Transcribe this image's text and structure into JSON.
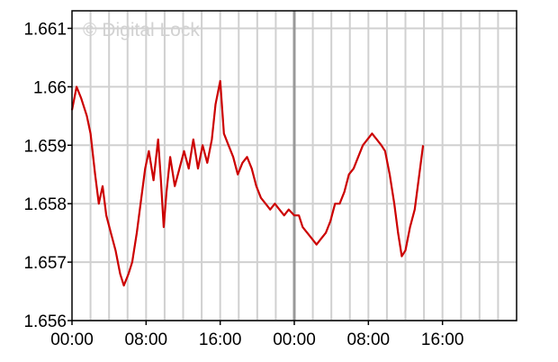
{
  "chart_data": {
    "type": "line",
    "watermark": "© Digital Lock",
    "y_ticks": [
      "1.656",
      "1.657",
      "1.658",
      "1.659",
      "1.66",
      "1.661"
    ],
    "ylim": [
      1.656,
      1.6613
    ],
    "x_tick_labels": [
      "00:00",
      "08:00",
      "16:00",
      "00:00",
      "08:00",
      "16:00"
    ],
    "x_tick_hours": [
      0,
      8,
      16,
      24,
      32,
      40
    ],
    "xlim_hours": [
      0,
      48
    ],
    "day_separator_hour": 24,
    "grid": true,
    "colors": {
      "line": "#cc0000",
      "grid": "#d0d0d0",
      "separator": "#999999",
      "frame": "#000000"
    },
    "series": [
      {
        "values": [
          [
            0.0,
            1.6596
          ],
          [
            0.5,
            1.66
          ],
          [
            1.0,
            1.6598
          ],
          [
            1.6,
            1.6595
          ],
          [
            2.0,
            1.6592
          ],
          [
            2.5,
            1.6585
          ],
          [
            2.9,
            1.658
          ],
          [
            3.3,
            1.6583
          ],
          [
            3.7,
            1.6578
          ],
          [
            4.2,
            1.6575
          ],
          [
            4.7,
            1.6572
          ],
          [
            5.2,
            1.6568
          ],
          [
            5.6,
            1.6566
          ],
          [
            6.1,
            1.6568
          ],
          [
            6.5,
            1.657
          ],
          [
            7.0,
            1.6575
          ],
          [
            7.4,
            1.658
          ],
          [
            7.9,
            1.6586
          ],
          [
            8.3,
            1.6589
          ],
          [
            8.8,
            1.6584
          ],
          [
            9.3,
            1.6591
          ],
          [
            9.6,
            1.6584
          ],
          [
            9.9,
            1.6576
          ],
          [
            10.2,
            1.6582
          ],
          [
            10.6,
            1.6588
          ],
          [
            11.1,
            1.6583
          ],
          [
            11.6,
            1.6586
          ],
          [
            12.1,
            1.6589
          ],
          [
            12.6,
            1.6586
          ],
          [
            13.1,
            1.6591
          ],
          [
            13.6,
            1.6586
          ],
          [
            14.1,
            1.659
          ],
          [
            14.6,
            1.6587
          ],
          [
            15.1,
            1.6591
          ],
          [
            15.5,
            1.6597
          ],
          [
            16.0,
            1.6601
          ],
          [
            16.4,
            1.6592
          ],
          [
            16.9,
            1.659
          ],
          [
            17.4,
            1.6588
          ],
          [
            17.9,
            1.6585
          ],
          [
            18.4,
            1.6587
          ],
          [
            18.9,
            1.6588
          ],
          [
            19.4,
            1.6586
          ],
          [
            19.9,
            1.6583
          ],
          [
            20.4,
            1.6581
          ],
          [
            20.9,
            1.658
          ],
          [
            21.4,
            1.6579
          ],
          [
            21.9,
            1.658
          ],
          [
            22.4,
            1.6579
          ],
          [
            22.9,
            1.6578
          ],
          [
            23.4,
            1.6579
          ],
          [
            24.0,
            1.6578
          ],
          [
            24.5,
            1.6578
          ],
          [
            24.9,
            1.6576
          ],
          [
            25.4,
            1.6575
          ],
          [
            25.9,
            1.6574
          ],
          [
            26.4,
            1.6573
          ],
          [
            26.9,
            1.6574
          ],
          [
            27.4,
            1.6575
          ],
          [
            27.9,
            1.6577
          ],
          [
            28.4,
            1.658
          ],
          [
            28.9,
            1.658
          ],
          [
            29.4,
            1.6582
          ],
          [
            29.9,
            1.6585
          ],
          [
            30.4,
            1.6586
          ],
          [
            30.9,
            1.6588
          ],
          [
            31.4,
            1.659
          ],
          [
            31.9,
            1.6591
          ],
          [
            32.4,
            1.6592
          ],
          [
            32.9,
            1.6591
          ],
          [
            33.4,
            1.659
          ],
          [
            33.8,
            1.6589
          ],
          [
            34.3,
            1.6585
          ],
          [
            34.8,
            1.658
          ],
          [
            35.2,
            1.6575
          ],
          [
            35.6,
            1.6571
          ],
          [
            36.0,
            1.6572
          ],
          [
            36.5,
            1.6576
          ],
          [
            37.0,
            1.6579
          ],
          [
            37.5,
            1.6585
          ],
          [
            37.9,
            1.659
          ]
        ]
      }
    ]
  }
}
